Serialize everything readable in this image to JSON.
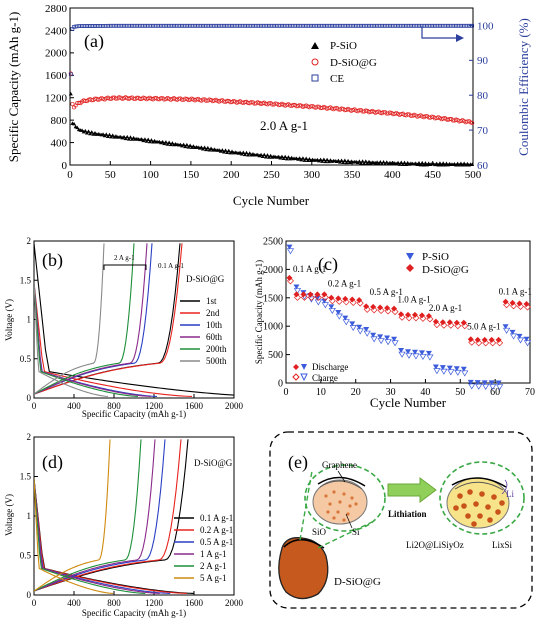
{
  "chart_data": [
    {
      "type": "scatter",
      "panel_label": "(a)",
      "xlabel": "Cycle Number",
      "ylabel": "Specific Capacity (mAh g-1)",
      "y2label": "Coulombic Efficiency (%)",
      "xlim": [
        0,
        500
      ],
      "ylim": [
        0,
        2800
      ],
      "y2lim": [
        60,
        105
      ],
      "xticks": [
        0,
        50,
        100,
        150,
        200,
        250,
        300,
        350,
        400,
        450,
        500
      ],
      "yticks": [
        0,
        400,
        800,
        1200,
        1600,
        2000,
        2400,
        2800
      ],
      "y2ticks": [
        60,
        70,
        80,
        90,
        100
      ],
      "annotation": "2.0 A g-1",
      "legend_position": "top-center",
      "series": [
        {
          "name": "P-SiO",
          "color": "#000000",
          "x": [
            1,
            2,
            3,
            5,
            8,
            10,
            15,
            20,
            30,
            40,
            50,
            60,
            80,
            100,
            120,
            150,
            180,
            200,
            250,
            300,
            350,
            400,
            450,
            500
          ],
          "y": [
            1250,
            790,
            760,
            720,
            680,
            640,
            610,
            590,
            560,
            540,
            520,
            500,
            470,
            430,
            390,
            330,
            270,
            230,
            150,
            90,
            55,
            30,
            15,
            8
          ]
        },
        {
          "name": "D-SiO@G",
          "color": "#e02020",
          "x": [
            1,
            2,
            3,
            5,
            8,
            10,
            15,
            20,
            30,
            40,
            50,
            60,
            80,
            100,
            120,
            150,
            180,
            200,
            250,
            300,
            350,
            400,
            450,
            500
          ],
          "y": [
            1620,
            1280,
            1080,
            1040,
            1080,
            1100,
            1130,
            1150,
            1170,
            1180,
            1190,
            1195,
            1190,
            1185,
            1180,
            1170,
            1150,
            1130,
            1090,
            1040,
            980,
            920,
            850,
            760
          ]
        },
        {
          "name": "CE",
          "color": "#2b3f9e",
          "axis": "right",
          "x": [
            1,
            2,
            3,
            5,
            10,
            50,
            100,
            200,
            300,
            400,
            500
          ],
          "y": [
            86,
            96,
            99,
            99.6,
            99.8,
            99.9,
            99.9,
            99.9,
            99.9,
            99.9,
            99.9
          ]
        }
      ]
    },
    {
      "type": "line",
      "panel_label": "(b)",
      "title": "D-SiO@G",
      "xlabel": "Specific Capacity (mAh g-1)",
      "ylabel": "Voltage (V)",
      "xlim": [
        0,
        2000
      ],
      "ylim": [
        0,
        2.0
      ],
      "xticks": [
        0,
        400,
        800,
        1200,
        1600,
        2000
      ],
      "yticks": [
        0.0,
        0.5,
        1.0,
        1.5,
        2.0
      ],
      "annotations": [
        "2 A g-1",
        "0.1 A g-1"
      ],
      "series": [
        {
          "name": "1st",
          "color": "#000000",
          "charge_cap": 1460,
          "discharge_cap": 2300
        },
        {
          "name": "2nd",
          "color": "#e8231f",
          "charge_cap": 1480,
          "discharge_cap": 1580
        },
        {
          "name": "10th",
          "color": "#2b3fc4",
          "charge_cap": 1180,
          "discharge_cap": 1230
        },
        {
          "name": "60th",
          "color": "#8a2a8a",
          "charge_cap": 1130,
          "discharge_cap": 1170
        },
        {
          "name": "200th",
          "color": "#1f8f3a",
          "charge_cap": 1000,
          "discharge_cap": 1040
        },
        {
          "name": "500th",
          "color": "#8a8a8a",
          "charge_cap": 700,
          "discharge_cap": 740
        }
      ]
    },
    {
      "type": "scatter",
      "panel_label": "(c)",
      "xlabel": "Cycle Number",
      "ylabel": "Specific Capacity (mAh g-1)",
      "xlim": [
        0,
        70
      ],
      "ylim": [
        0,
        2500
      ],
      "xticks": [
        0,
        10,
        20,
        30,
        40,
        50,
        60,
        70
      ],
      "yticks": [
        0,
        500,
        1000,
        1500,
        2000,
        2500
      ],
      "rate_labels": [
        "0.1 A g-1",
        "0.2 A g-1",
        "0.5 A g-1",
        "1.0 A g-1",
        "2.0 A g-1",
        "5.0 A g-1",
        "0.1 A g-1"
      ],
      "marker_legend": [
        "Discharge",
        "Charge"
      ],
      "series": [
        {
          "name": "P-SiO",
          "color": "#3b5bdb",
          "x": [
            1,
            3,
            5,
            7,
            9,
            11,
            13,
            15,
            17,
            19,
            21,
            23,
            25,
            27,
            29,
            31,
            33,
            35,
            37,
            39,
            41,
            43,
            45,
            47,
            49,
            51,
            53,
            55,
            57,
            59,
            61,
            63,
            65,
            67,
            69
          ],
          "y": [
            2400,
            1700,
            1600,
            1550,
            1500,
            1450,
            1350,
            1250,
            1150,
            1050,
            990,
            950,
            850,
            820,
            800,
            780,
            580,
            560,
            550,
            540,
            530,
            290,
            280,
            270,
            260,
            250,
            20,
            15,
            12,
            10,
            8,
            1000,
            900,
            830,
            780
          ]
        },
        {
          "name": "D-SiO@G",
          "color": "#e02020",
          "x": [
            1,
            3,
            5,
            7,
            9,
            11,
            13,
            15,
            17,
            19,
            21,
            23,
            25,
            27,
            29,
            31,
            33,
            35,
            37,
            39,
            41,
            43,
            45,
            47,
            49,
            51,
            53,
            55,
            57,
            59,
            61,
            63,
            65,
            67,
            69
          ],
          "y": [
            1850,
            1560,
            1560,
            1560,
            1560,
            1560,
            1500,
            1490,
            1480,
            1470,
            1460,
            1350,
            1340,
            1330,
            1320,
            1310,
            1210,
            1200,
            1200,
            1190,
            1180,
            1080,
            1070,
            1070,
            1060,
            1060,
            770,
            760,
            760,
            760,
            760,
            1430,
            1410,
            1400,
            1390
          ]
        }
      ]
    },
    {
      "type": "line",
      "panel_label": "(d)",
      "title": "D-SiO@G",
      "xlabel": "Specific Capacity (mAh g-1)",
      "ylabel": "Voltage (V)",
      "xlim": [
        0,
        2000
      ],
      "ylim": [
        0,
        2.0
      ],
      "xticks": [
        0,
        400,
        800,
        1200,
        1600,
        2000
      ],
      "yticks": [
        0.0,
        0.5,
        1.0,
        1.5,
        2.0
      ],
      "series": [
        {
          "name": "0.1 A g-1",
          "color": "#000000",
          "charge_cap": 1540
        },
        {
          "name": "0.2 A g-1",
          "color": "#e8231f",
          "charge_cap": 1470
        },
        {
          "name": "0.5 A g-1",
          "color": "#2b3fc4",
          "charge_cap": 1310
        },
        {
          "name": "1 A g-1",
          "color": "#8a2a8a",
          "charge_cap": 1210
        },
        {
          "name": "2 A g-1",
          "color": "#1f8f3a",
          "charge_cap": 1070
        },
        {
          "name": "5 A g-1",
          "color": "#d08a10",
          "charge_cap": 760
        }
      ]
    }
  ],
  "diagram": {
    "panel_label": "(e)",
    "labels": {
      "graphene": "Graphene",
      "sio": "SiO",
      "si": "Si",
      "lithiation": "Lithiation",
      "li": "Li",
      "li2o": "Li2O@LiSiyOz",
      "lixsi": "LixSi",
      "dsiog": "D-SiO@G"
    }
  }
}
